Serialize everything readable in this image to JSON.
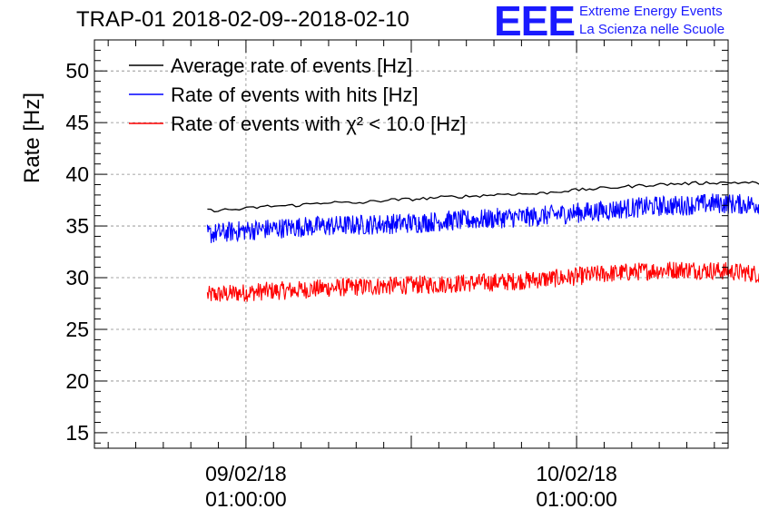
{
  "header": {
    "title": "TRAP-01 2018-02-09--2018-02-10",
    "logo": "EEE",
    "logo_line1": "Extreme Energy Events",
    "logo_line2": "La Scienza nelle Scuole",
    "logo_color": "#1a1aff"
  },
  "chart_data": {
    "type": "line",
    "title": "TRAP-01 2018-02-09--2018-02-10",
    "xlabel": "",
    "ylabel": "Rate [Hz]",
    "ylim": [
      13.5,
      53
    ],
    "xlim_hours": [
      -11,
      35
    ],
    "yticks": [
      15,
      20,
      25,
      30,
      35,
      40,
      45,
      50
    ],
    "ytick_labels": [
      "15",
      "20",
      "25",
      "30",
      "35",
      "40",
      "45",
      "50"
    ],
    "xticks": [
      {
        "hours": 0,
        "date": "09/02/18",
        "time": "01:00:00"
      },
      {
        "hours": 24,
        "date": "10/02/18",
        "time": "01:00:00"
      }
    ],
    "x_start_hours": -2.8,
    "x_end_hours": 38.3,
    "grid": true,
    "legend_position": "top-left",
    "series": [
      {
        "name": "Average rate of events [Hz]",
        "color": "#000000",
        "values": [
          36.5,
          36.6,
          36.9,
          37.0,
          37.3,
          37.2,
          37.5,
          37.6,
          37.8,
          37.9,
          38.1,
          38.1,
          38.4,
          38.6,
          38.8,
          39.0,
          39.1,
          39.2,
          39.2,
          39.1
        ],
        "noise": 0.15
      },
      {
        "name": "Rate of events with hits [Hz]",
        "color": "#0000ff",
        "values": [
          34.2,
          34.5,
          34.7,
          34.9,
          35.0,
          35.1,
          35.2,
          35.3,
          35.5,
          35.6,
          35.8,
          35.9,
          36.2,
          36.4,
          36.7,
          36.9,
          37.0,
          37.2,
          37.1,
          37.1
        ],
        "noise": 1.0
      },
      {
        "name": "Rate of events with χ² < 10.0 [Hz]",
        "color": "#ff0000",
        "values": [
          28.3,
          28.5,
          28.7,
          28.8,
          29.0,
          29.1,
          29.2,
          29.3,
          29.4,
          29.5,
          29.6,
          29.8,
          30.0,
          30.3,
          30.5,
          30.7,
          30.8,
          30.7,
          30.5,
          30.2
        ],
        "noise": 0.9
      }
    ]
  }
}
